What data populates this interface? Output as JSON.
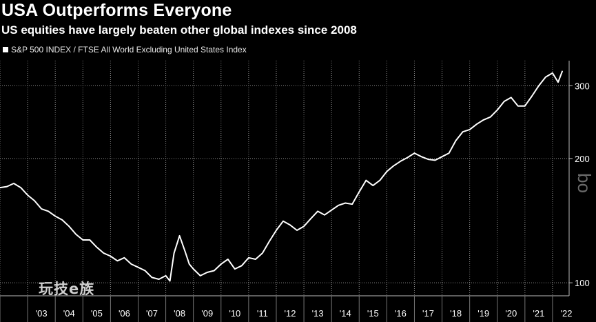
{
  "chart_data": {
    "type": "line",
    "title": "USA Outperforms Everyone",
    "subtitle": "US equities have largely beaten other global indexes since 2008",
    "legend_position": "top-left",
    "series": [
      {
        "name": "S&P 500 INDEX / FTSE All World Excluding United States Index",
        "color": "#ffffff",
        "x": [
          2002.0,
          2002.25,
          2002.5,
          2002.75,
          2003.0,
          2003.25,
          2003.5,
          2003.75,
          2004.0,
          2004.25,
          2004.5,
          2004.75,
          2005.0,
          2005.25,
          2005.5,
          2005.75,
          2006.0,
          2006.25,
          2006.5,
          2006.75,
          2007.0,
          2007.25,
          2007.5,
          2007.75,
          2008.0,
          2008.15,
          2008.3,
          2008.5,
          2008.7,
          2008.85,
          2009.0,
          2009.25,
          2009.5,
          2009.75,
          2010.0,
          2010.25,
          2010.5,
          2010.75,
          2011.0,
          2011.25,
          2011.5,
          2011.75,
          2012.0,
          2012.25,
          2012.5,
          2012.75,
          2013.0,
          2013.25,
          2013.5,
          2013.75,
          2014.0,
          2014.25,
          2014.5,
          2014.75,
          2015.0,
          2015.25,
          2015.5,
          2015.75,
          2016.0,
          2016.25,
          2016.5,
          2016.75,
          2017.0,
          2017.25,
          2017.5,
          2017.75,
          2018.0,
          2018.25,
          2018.5,
          2018.75,
          2019.0,
          2019.25,
          2019.5,
          2019.75,
          2020.0,
          2020.25,
          2020.5,
          2020.75,
          2021.0,
          2021.25,
          2021.5,
          2021.75,
          2022.0,
          2022.2,
          2022.35
        ],
        "y": [
          170,
          171,
          174,
          170,
          163,
          158,
          151,
          149,
          145,
          142,
          137,
          131,
          127,
          127,
          122,
          118,
          116,
          113,
          115,
          111,
          109,
          107,
          103,
          102,
          104,
          101,
          118,
          130,
          119,
          111,
          108,
          104,
          106,
          107,
          111,
          114,
          108,
          110,
          115,
          114,
          118,
          126,
          134,
          141,
          138,
          134,
          137,
          143,
          149,
          146,
          150,
          154,
          156,
          155,
          166,
          177,
          172,
          177,
          186,
          192,
          197,
          201,
          206,
          202,
          199,
          198,
          202,
          206,
          221,
          232,
          235,
          242,
          248,
          252,
          262,
          275,
          281,
          268,
          268,
          283,
          300,
          315,
          322,
          306,
          325
        ]
      }
    ],
    "ylabel": "",
    "xlabel": "",
    "y_scale": "log",
    "ylim": [
      93,
      345
    ],
    "xlim": [
      2002.0,
      2022.6
    ],
    "yticks": [
      100,
      200,
      300
    ],
    "ytick_labels": [
      "100",
      "200",
      "300"
    ],
    "xticks": [
      2003,
      2004,
      2005,
      2006,
      2007,
      2008,
      2009,
      2010,
      2011,
      2012,
      2013,
      2014,
      2015,
      2016,
      2017,
      2018,
      2019,
      2020,
      2021,
      2022
    ],
    "xtick_labels": [
      "'03",
      "'04",
      "'05",
      "'06",
      "'07",
      "'08",
      "'09",
      "'10",
      "'11",
      "'12",
      "'13",
      "'14",
      "'15",
      "'16",
      "'17",
      "'18",
      "'19",
      "'20",
      "'21",
      "'22"
    ],
    "grid": true,
    "background": "#000000",
    "grid_color": "#8a8a8a"
  },
  "watermark": "玩技e族",
  "side_mark": "bo"
}
